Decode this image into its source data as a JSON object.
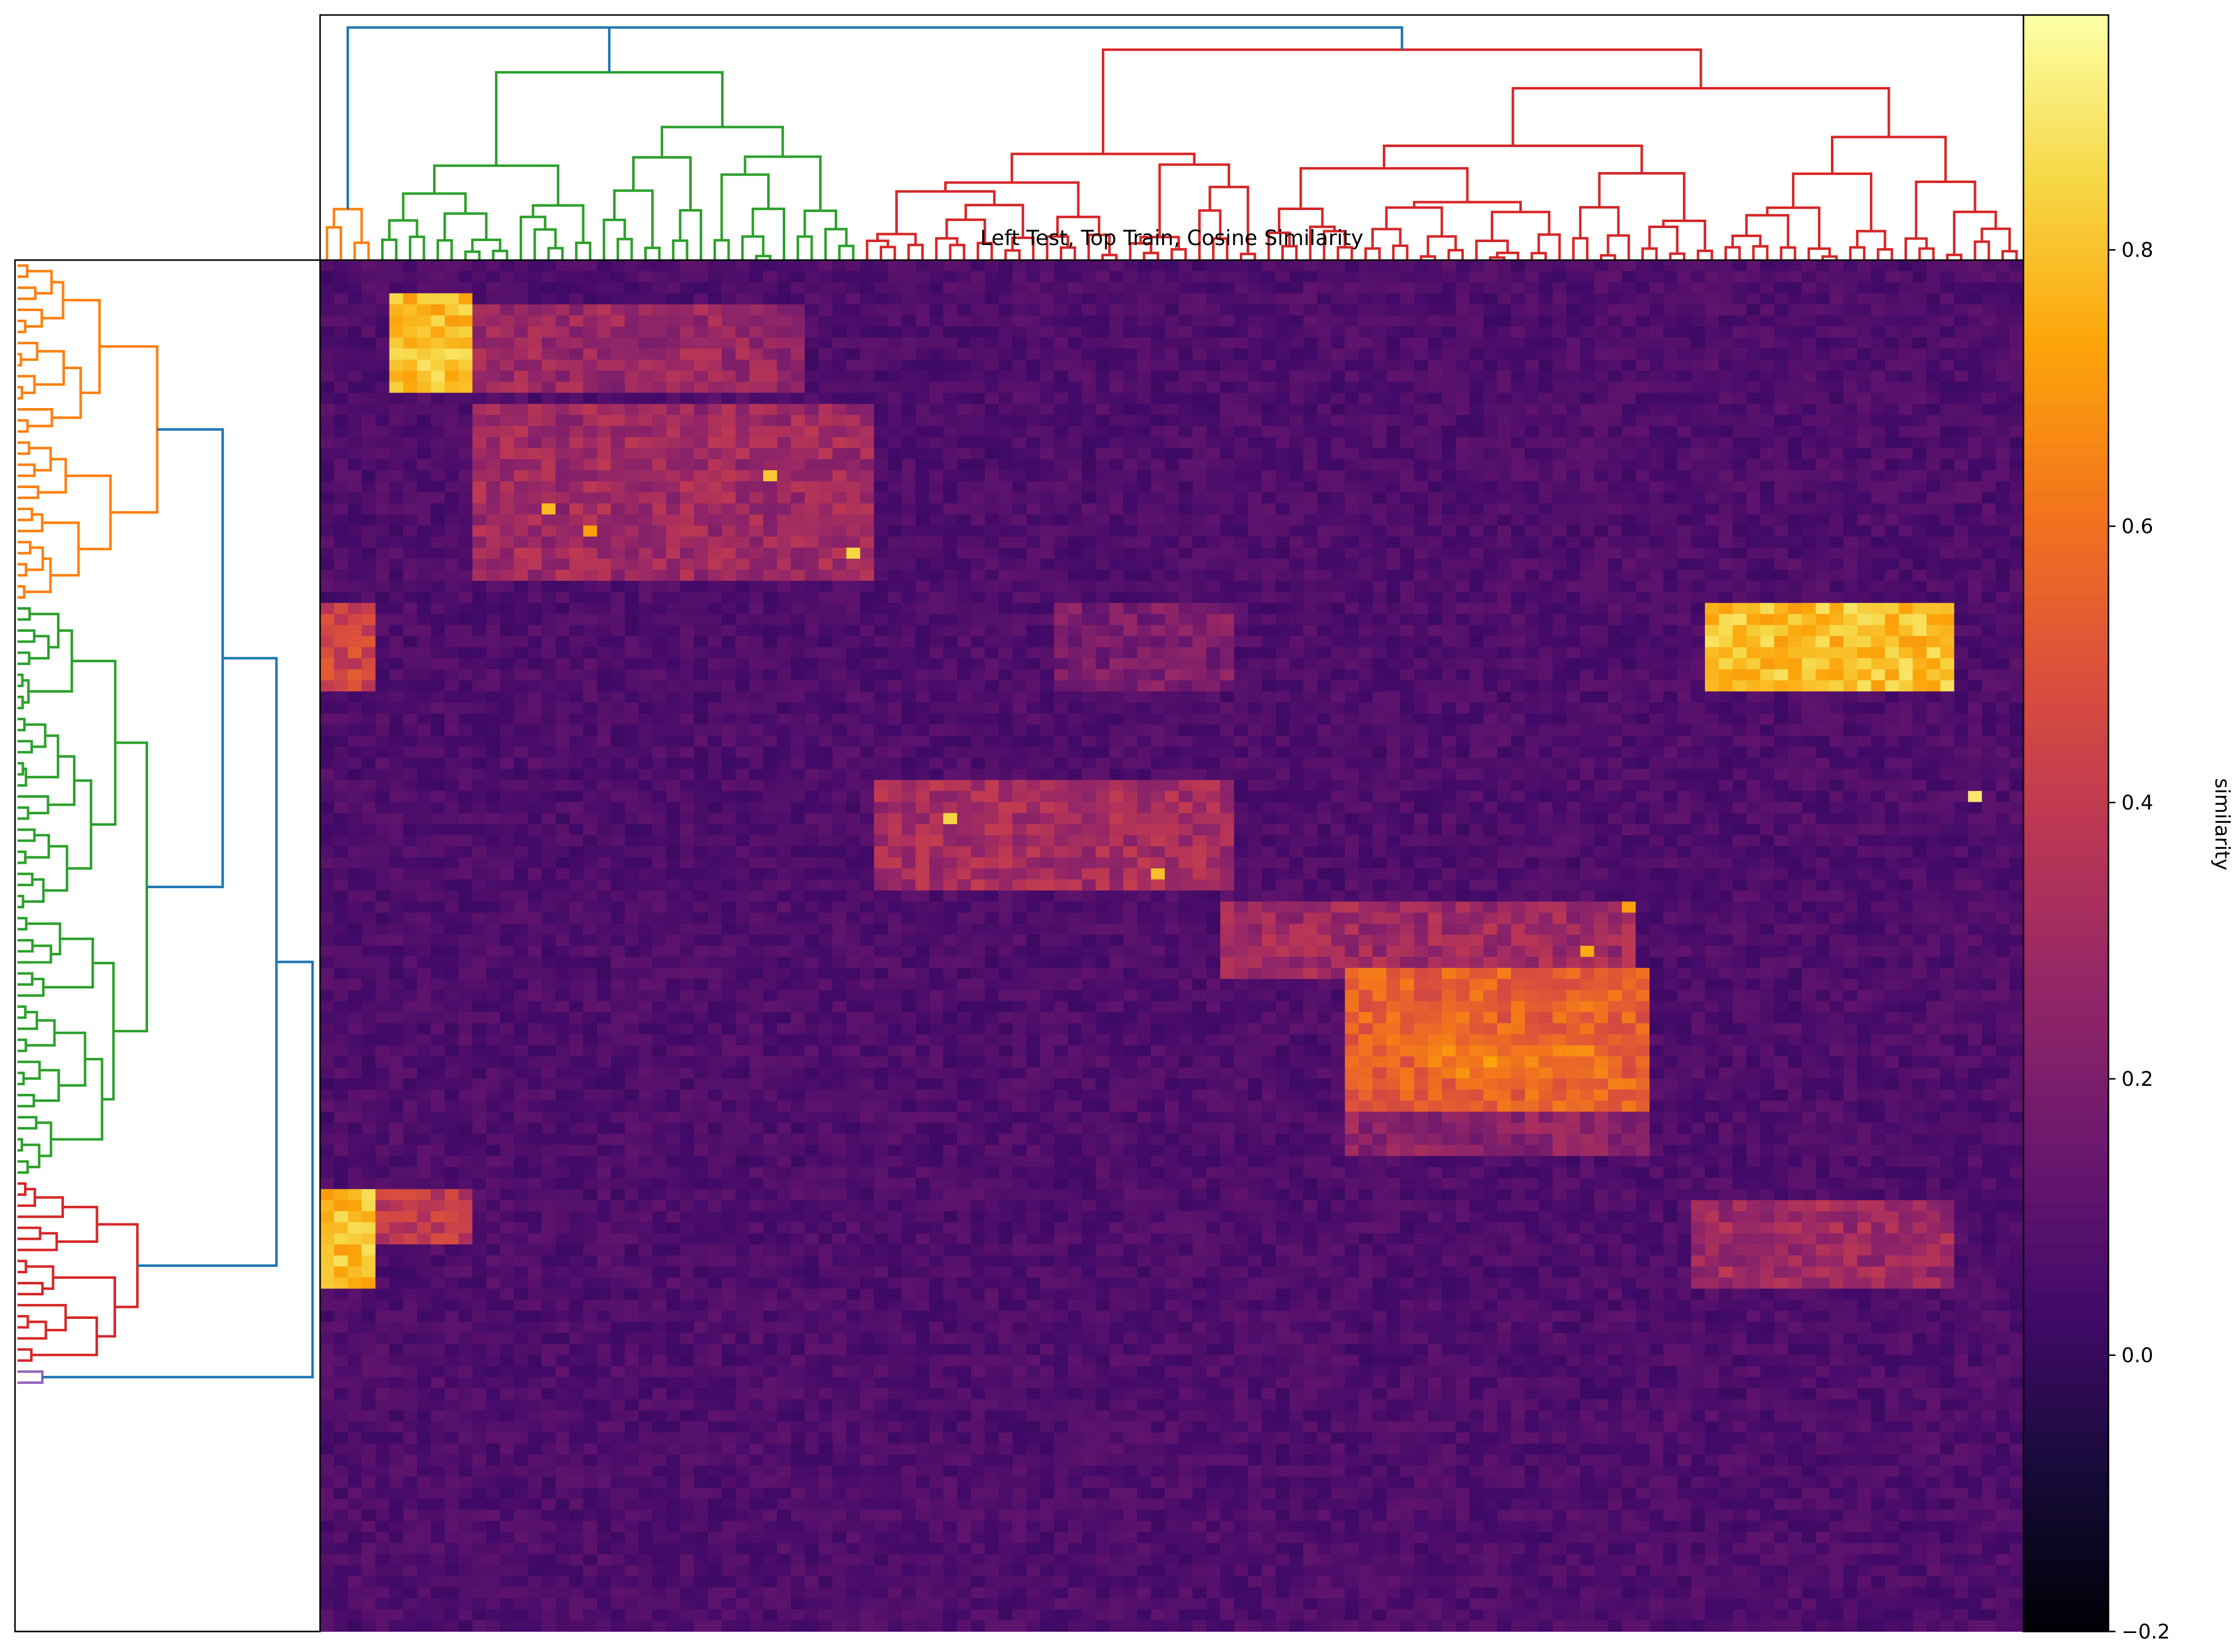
{
  "chart_data": {
    "type": "heatmap",
    "title": "Left Test, Top Train, Cosine Similarity",
    "colorbar": {
      "label": "similarity",
      "colormap": "inferno",
      "vmin": -0.2,
      "vmax": 0.97,
      "ticks": [
        "0.8",
        "0.6",
        "0.4",
        "0.2",
        "0.0",
        "−0.2"
      ],
      "tick_values": [
        0.8,
        0.6,
        0.4,
        0.2,
        0.0,
        -0.2
      ]
    },
    "dendrogram_colors": {
      "link": "#1f77b4",
      "cluster_a": "#ff7f0e",
      "cluster_b": "#2ca02c",
      "cluster_c": "#d62728",
      "cluster_d": "#9467bd"
    },
    "grid": {
      "rows": 124,
      "cols": 123
    },
    "col_clusters": [
      {
        "count": 4,
        "color": "orange"
      },
      {
        "count": 35,
        "color": "green"
      },
      {
        "count": 84,
        "color": "red"
      }
    ],
    "row_clusters": [
      {
        "count": 31,
        "color": "orange"
      },
      {
        "count": 52,
        "color": "green"
      },
      {
        "count": 17,
        "color": "red"
      },
      {
        "count": 2,
        "color": "purple"
      }
    ],
    "blocks": [
      {
        "rows": [
          3,
          11
        ],
        "cols": [
          5,
          10
        ],
        "value": 0.8
      },
      {
        "rows": [
          4,
          11
        ],
        "cols": [
          11,
          34
        ],
        "value": 0.28
      },
      {
        "rows": [
          13,
          28
        ],
        "cols": [
          11,
          39
        ],
        "value": 0.3
      },
      {
        "rows": [
          31,
          38
        ],
        "cols": [
          0,
          3
        ],
        "value": 0.45
      },
      {
        "rows": [
          31,
          38
        ],
        "cols": [
          100,
          117
        ],
        "value": 0.8
      },
      {
        "rows": [
          31,
          38
        ],
        "cols": [
          53,
          65
        ],
        "value": 0.2
      },
      {
        "rows": [
          47,
          56
        ],
        "cols": [
          40,
          65
        ],
        "value": 0.32
      },
      {
        "rows": [
          58,
          64
        ],
        "cols": [
          65,
          94
        ],
        "value": 0.3
      },
      {
        "rows": [
          64,
          76
        ],
        "cols": [
          74,
          95
        ],
        "value": 0.55
      },
      {
        "rows": [
          71,
          73
        ],
        "cols": [
          80,
          92
        ],
        "value": 0.65
      },
      {
        "rows": [
          77,
          80
        ],
        "cols": [
          74,
          95
        ],
        "value": 0.25
      },
      {
        "rows": [
          84,
          92
        ],
        "cols": [
          0,
          3
        ],
        "value": 0.8
      },
      {
        "rows": [
          84,
          88
        ],
        "cols": [
          4,
          10
        ],
        "value": 0.4
      },
      {
        "rows": [
          85,
          92
        ],
        "cols": [
          99,
          117
        ],
        "value": 0.3
      }
    ],
    "hot_cells": [
      {
        "row": 19,
        "col": 32,
        "value": 0.82
      },
      {
        "row": 22,
        "col": 16,
        "value": 0.78
      },
      {
        "row": 24,
        "col": 19,
        "value": 0.72
      },
      {
        "row": 26,
        "col": 38,
        "value": 0.85
      },
      {
        "row": 50,
        "col": 45,
        "value": 0.85
      },
      {
        "row": 55,
        "col": 60,
        "value": 0.8
      },
      {
        "row": 48,
        "col": 119,
        "value": 0.9
      },
      {
        "row": 58,
        "col": 94,
        "value": 0.72
      },
      {
        "row": 62,
        "col": 91,
        "value": 0.75
      }
    ]
  }
}
